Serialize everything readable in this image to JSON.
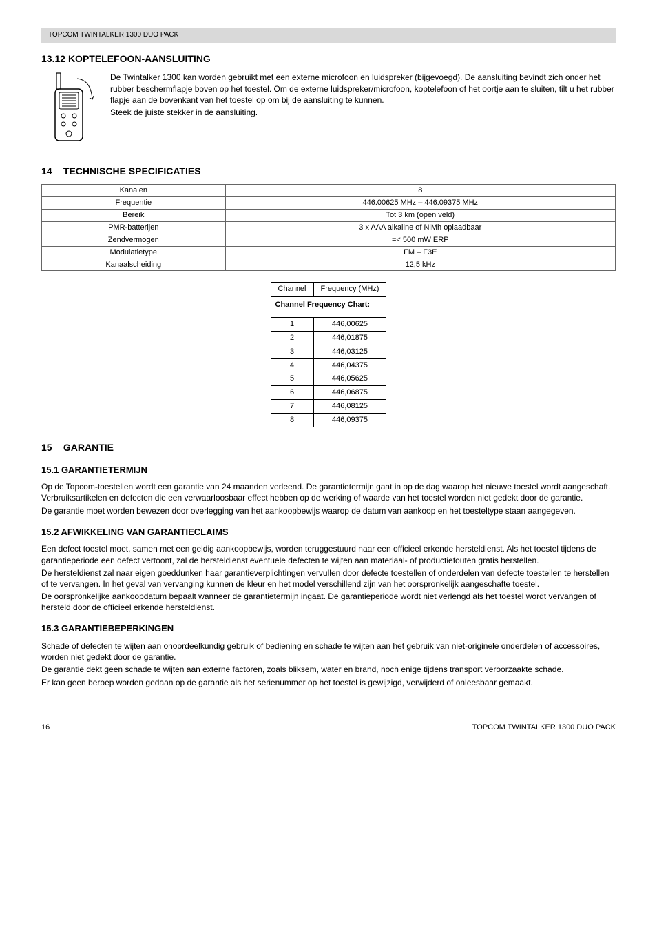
{
  "header": {
    "product": "TOPCOM TWINTALKER 1300 DUO PACK"
  },
  "s13_12": {
    "num": "13.12",
    "title": "KOPTELEFOON-AANSLUITING",
    "paragraph": "De Twintalker 1300 kan worden gebruikt met een externe microfoon en luidspreker (bijgevoegd). De aansluiting bevindt zich onder het rubber beschermflapje boven op het toestel. Om de externe luidspreker/microfoon, koptelefoon of het oortje aan te sluiten, tilt u het rubber flapje aan de bovenkant van het toestel op om bij de aansluiting te kunnen.",
    "line2": "Steek de juiste stekker in de aansluiting."
  },
  "s14": {
    "num": "14",
    "title": "TECHNISCHE SPECIFICATIES",
    "rows": [
      {
        "label": "Kanalen",
        "value": "8"
      },
      {
        "label": "Frequentie",
        "value": "446.00625 MHz – 446.09375 MHz"
      },
      {
        "label": "Bereik",
        "value": "Tot 3 km (open veld)"
      },
      {
        "label": "PMR-batterijen",
        "value": "3 x AAA alkaline of NiMh oplaadbaar"
      },
      {
        "label": "Zendvermogen",
        "value": "=< 500 mW ERP"
      },
      {
        "label": "Modulatietype",
        "value": "FM – F3E"
      },
      {
        "label": "Kanaalscheiding",
        "value": "12,5 kHz"
      }
    ],
    "freq": {
      "title": "Channel Frequency Chart:",
      "col1": "Channel",
      "col2": "Frequency (MHz)",
      "rows": [
        {
          "ch": "1",
          "f": "446,00625"
        },
        {
          "ch": "2",
          "f": "446,01875"
        },
        {
          "ch": "3",
          "f": "446,03125"
        },
        {
          "ch": "4",
          "f": "446,04375"
        },
        {
          "ch": "5",
          "f": "446,05625"
        },
        {
          "ch": "6",
          "f": "446,06875"
        },
        {
          "ch": "7",
          "f": "446,08125"
        },
        {
          "ch": "8",
          "f": "446,09375"
        }
      ]
    }
  },
  "s15": {
    "num": "15",
    "title": "GARANTIE",
    "s1": {
      "num": "15.1",
      "title": "GARANTIETERMIJN",
      "p1": "Op de Topcom-toestellen wordt een garantie van 24 maanden verleend. De garantietermijn gaat in op de dag waarop het nieuwe toestel wordt aangeschaft. Verbruiksartikelen en defecten die een verwaarloosbaar effect hebben op de werking of waarde van het toestel worden niet gedekt door de garantie.",
      "p2": "De garantie moet worden bewezen door overlegging van het aankoopbewijs waarop de datum van aankoop en het toesteltype staan aangegeven."
    },
    "s2": {
      "num": "15.2",
      "title": "AFWIKKELING VAN GARANTIECLAIMS",
      "p1": "Een defect toestel moet, samen met een geldig aankoopbewijs, worden teruggestuurd naar een officieel erkende hersteldienst. Als het toestel tijdens de garantieperiode een defect vertoont, zal de hersteldienst eventuele defecten te wijten aan materiaal- of productiefouten gratis herstellen.",
      "p2": "De hersteldienst zal naar eigen goeddunken haar garantieverplichtingen vervullen door defecte toestellen of onderdelen van defecte toestellen te herstellen of te vervangen. In het geval van vervanging kunnen de kleur en het model verschillend zijn van het oorspronkelijk aangeschafte toestel.",
      "p3": "De oorspronkelijke aankoopdatum bepaalt wanneer de garantietermijn ingaat. De garantieperiode wordt niet verlengd als het toestel wordt vervangen of hersteld door de officieel erkende hersteldienst."
    },
    "s3": {
      "num": "15.3",
      "title": "GARANTIEBEPERKINGEN",
      "p1": "Schade of defecten te wijten aan onoordeelkundig gebruik of bediening en schade te wijten aan het gebruik van niet-originele onderdelen of accessoires, worden niet gedekt door de garantie.",
      "p2": "De garantie dekt geen schade te wijten aan externe factoren, zoals bliksem, water en brand, noch enige tijdens transport veroorzaakte schade.",
      "p3": "Er kan geen beroep worden gedaan op de garantie als het serienummer op het toestel is gewijzigd, verwijderd of onleesbaar gemaakt."
    }
  },
  "footer": {
    "page": "16",
    "product": "TOPCOM TWINTALKER 1300 DUO PACK"
  }
}
